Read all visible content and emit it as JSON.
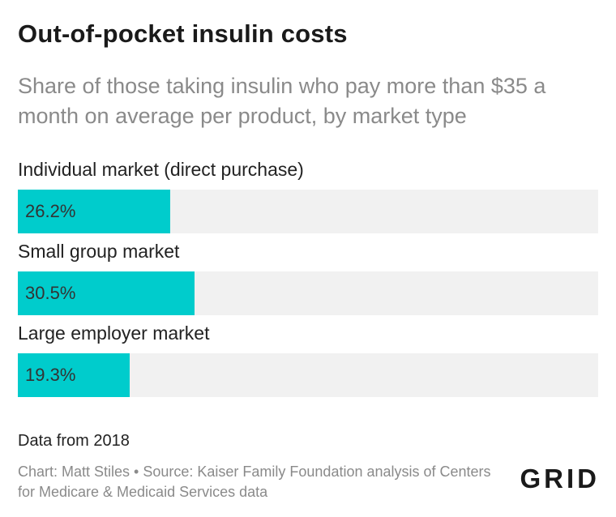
{
  "colors": {
    "bar": "#00cccc",
    "track": "#f1f1f1"
  },
  "chart_data": {
    "type": "bar",
    "orientation": "horizontal",
    "title": "Out-of-pocket insulin costs",
    "subtitle": "Share of those taking insulin who pay more than $35 a month on average per product, by market type",
    "categories": [
      "Individual market (direct purchase)",
      "Small group market",
      "Large employer market"
    ],
    "values": [
      26.2,
      30.5,
      19.3
    ],
    "value_labels": [
      "26.2%",
      "30.5%",
      "19.3%"
    ],
    "xlim": [
      0,
      100
    ],
    "grid": false,
    "legend": false
  },
  "footer": {
    "note": "Data from 2018",
    "credits": "Chart: Matt Stiles • Source: Kaiser Family Foundation analysis of Centers for Medicare & Medicaid Services data",
    "logo": "GRID"
  }
}
